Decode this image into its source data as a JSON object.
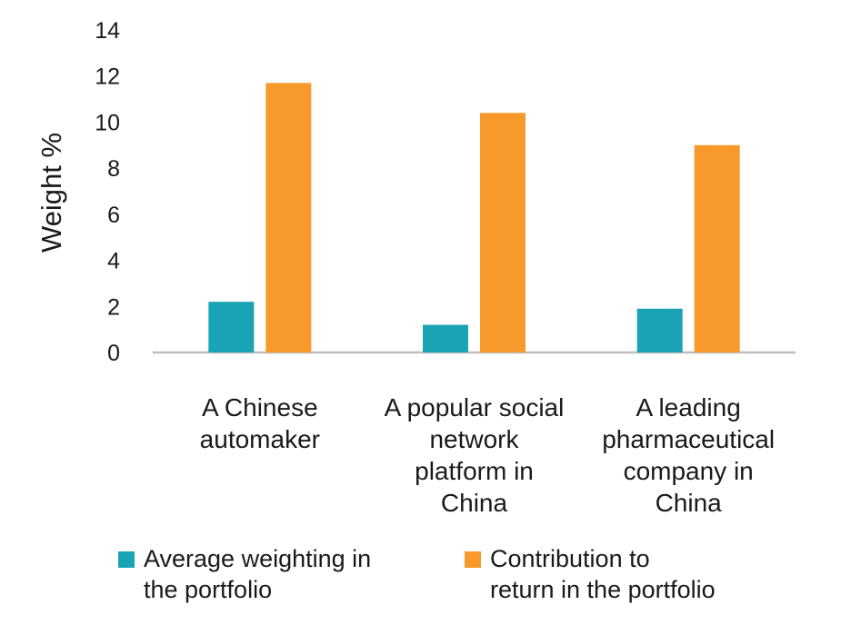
{
  "chart_data": {
    "type": "bar",
    "title": "",
    "xlabel": "",
    "ylabel": "Weight %",
    "ylim": [
      0,
      14
    ],
    "yticks": [
      0,
      2,
      4,
      6,
      8,
      10,
      12,
      14
    ],
    "grid": false,
    "legend_position": "bottom",
    "categories": [
      "A Chinese automaker",
      "A popular social network platform in China",
      "A leading pharmaceutical company in China"
    ],
    "category_lines": [
      [
        "A Chinese",
        "automaker"
      ],
      [
        "A popular social",
        "network",
        "platform in",
        "China"
      ],
      [
        "A leading",
        "pharmaceutical",
        "company in",
        "China"
      ]
    ],
    "series": [
      {
        "name": "Average weighting in the portfolio",
        "color": "#1aa3b4",
        "values": [
          2.2,
          1.2,
          1.9
        ]
      },
      {
        "name": "Contribution to return in the portfolio",
        "color": "#f7992b",
        "values": [
          11.7,
          10.4,
          9.0
        ]
      }
    ]
  },
  "legend": {
    "items": [
      {
        "lines": [
          "Average weighting in",
          "the portfolio"
        ],
        "color": "#1aa3b4"
      },
      {
        "lines": [
          "Contribution to",
          "return in the portfolio"
        ],
        "color": "#f7992b"
      }
    ]
  }
}
